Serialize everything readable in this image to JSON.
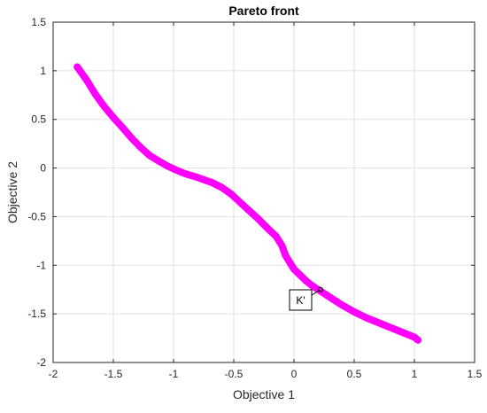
{
  "chart_data": {
    "type": "scatter",
    "title": "Pareto front",
    "xlabel": "Objective 1",
    "ylabel": "Objective 2",
    "xlim": [
      -2,
      1.5
    ],
    "ylim": [
      -2,
      1.5
    ],
    "xticks": [
      -2,
      -1.5,
      -1,
      -0.5,
      0,
      0.5,
      1,
      1.5
    ],
    "yticks": [
      -2,
      -1.5,
      -1,
      -0.5,
      0,
      0.5,
      1,
      1.5
    ],
    "xtick_labels": [
      "-2",
      "-1.5",
      "-1",
      "-0.5",
      "0",
      "0.5",
      "1",
      "1.5"
    ],
    "ytick_labels": [
      "-2",
      "-1.5",
      "-1",
      "-0.5",
      "0",
      "0.5",
      "1",
      "1.5"
    ],
    "grid": true,
    "series": [
      {
        "marker": "star",
        "color": "#ff00ff",
        "x": [
          -1.8,
          -1.72,
          -1.65,
          -1.58,
          -1.5,
          -1.42,
          -1.35,
          -1.28,
          -1.2,
          -1.12,
          -1.05,
          -0.98,
          -0.9,
          -0.82,
          -0.75,
          -0.68,
          -0.6,
          -0.52,
          -0.45,
          -0.38,
          -0.3,
          -0.22,
          -0.15,
          -0.1,
          -0.07,
          -0.03,
          0.0,
          0.05,
          0.1,
          0.15,
          0.2,
          0.25,
          0.3,
          0.4,
          0.5,
          0.6,
          0.7,
          0.8,
          0.9,
          1.0,
          1.03
        ],
        "y": [
          1.04,
          0.9,
          0.76,
          0.64,
          0.52,
          0.41,
          0.31,
          0.22,
          0.13,
          0.07,
          0.02,
          -0.02,
          -0.06,
          -0.09,
          -0.12,
          -0.15,
          -0.2,
          -0.27,
          -0.35,
          -0.43,
          -0.52,
          -0.62,
          -0.7,
          -0.8,
          -0.9,
          -0.98,
          -1.04,
          -1.1,
          -1.16,
          -1.21,
          -1.25,
          -1.29,
          -1.33,
          -1.41,
          -1.48,
          -1.54,
          -1.59,
          -1.64,
          -1.69,
          -1.74,
          -1.77
        ]
      }
    ],
    "annotation": {
      "label": "K'",
      "point": [
        0.22,
        -1.25
      ]
    }
  }
}
